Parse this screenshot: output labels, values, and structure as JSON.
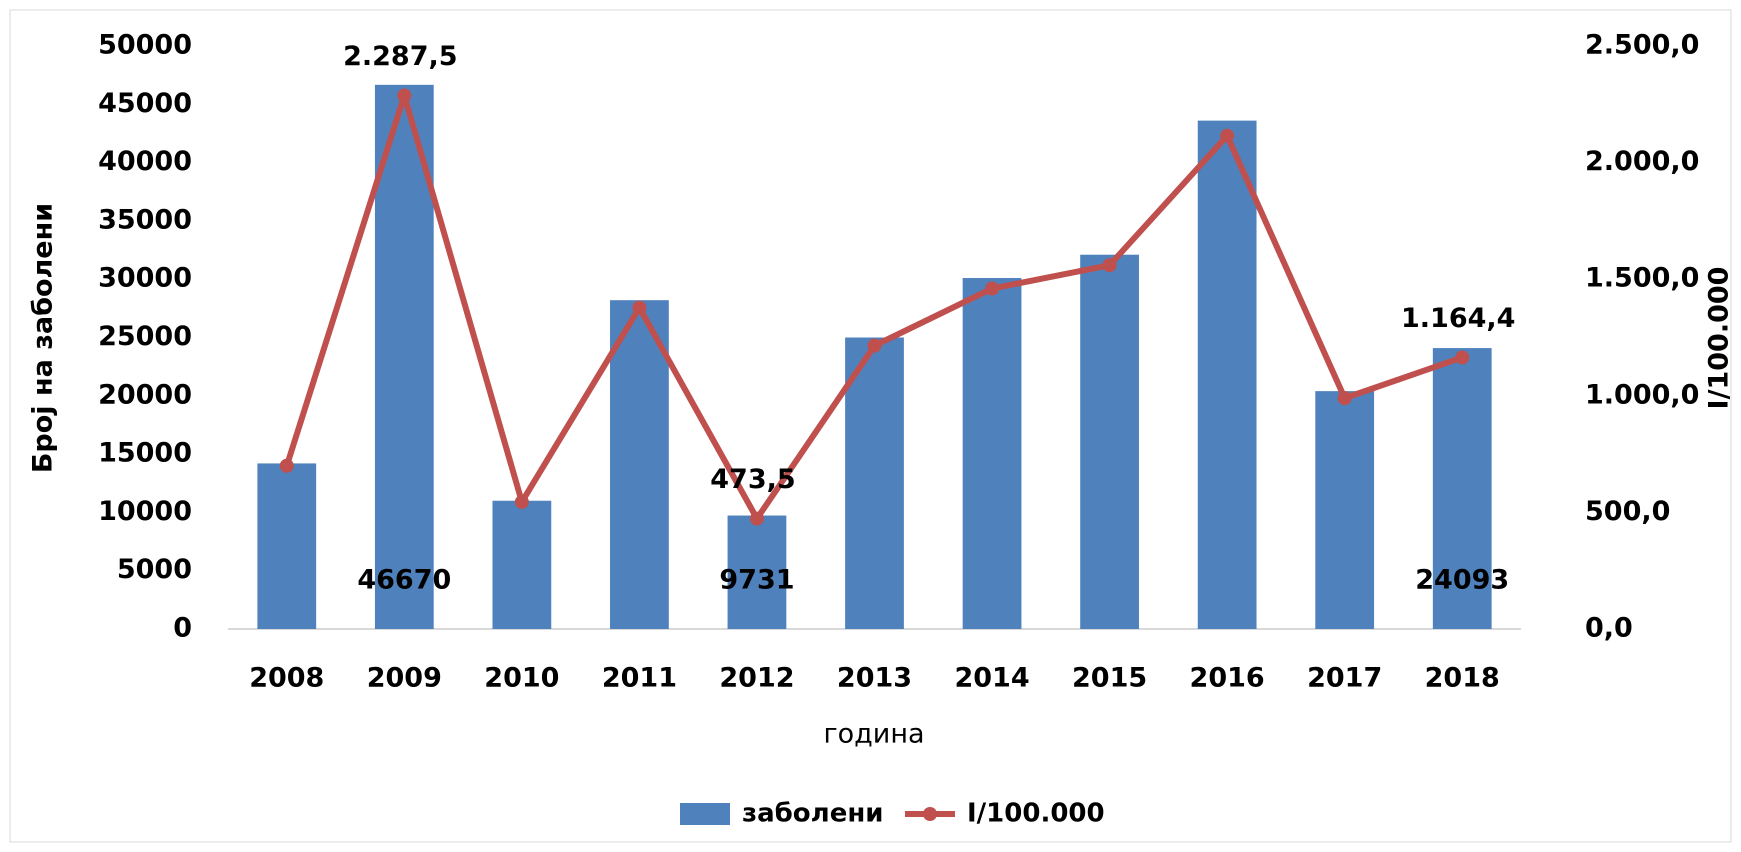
{
  "chart_data": {
    "type": "bar",
    "categories": [
      "2008",
      "2009",
      "2010",
      "2011",
      "2012",
      "2013",
      "2014",
      "2015",
      "2016",
      "2017",
      "2018"
    ],
    "series": [
      {
        "name": "заболени",
        "type": "bar",
        "color": "#4f81bd",
        "values": [
          14200,
          46670,
          11000,
          28200,
          9731,
          25000,
          30100,
          32100,
          43600,
          20400,
          24093
        ],
        "value_labels": [
          null,
          "46670",
          null,
          null,
          "9731",
          null,
          null,
          null,
          null,
          null,
          "24093"
        ]
      },
      {
        "name": "I/100.000",
        "type": "line",
        "axis": "y2",
        "color": "#c0504d",
        "values": [
          700,
          2287.5,
          545,
          1378,
          473.5,
          1215,
          1460,
          1560,
          2115,
          990,
          1164.4
        ],
        "value_labels": [
          null,
          "2.287,5",
          null,
          null,
          "473,5",
          null,
          null,
          null,
          null,
          null,
          "1.164,4"
        ]
      }
    ],
    "ylim": [
      0,
      50000
    ],
    "yticks": [
      0,
      5000,
      10000,
      15000,
      20000,
      25000,
      30000,
      35000,
      40000,
      45000,
      50000
    ],
    "y2lim": [
      0,
      2500
    ],
    "y2ticks": [
      {
        "value": 0,
        "label": "0,0"
      },
      {
        "value": 500,
        "label": "500,0"
      },
      {
        "value": 1000,
        "label": "1.000,0"
      },
      {
        "value": 1500,
        "label": "1.500,0"
      },
      {
        "value": 2000,
        "label": "2.000,0"
      },
      {
        "value": 2500,
        "label": "2.500,0"
      }
    ],
    "ylabel": "Број на заболени",
    "y2label": "I/100.000",
    "xlabel": "година",
    "legend": "bottom"
  }
}
